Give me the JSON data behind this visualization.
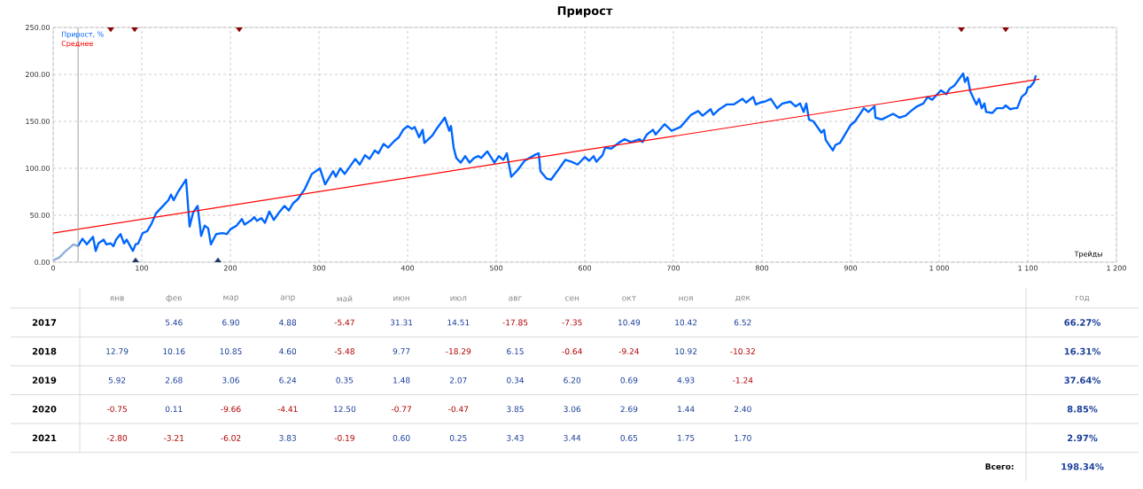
{
  "chart_data": [
    {
      "type": "line",
      "title": "Прирост",
      "xlabel": "Трейды",
      "xlim": [
        0,
        1200
      ],
      "ylim": [
        0,
        250
      ],
      "xticks": [
        0,
        100,
        200,
        300,
        400,
        500,
        600,
        700,
        800,
        900,
        {
          "value": 1000,
          "label": "1 000"
        },
        {
          "value": 1100,
          "label": "1 100"
        },
        {
          "value": 1200,
          "label": "1 200"
        }
      ],
      "yticks": [
        {
          "value": 0,
          "label": "0.00"
        },
        {
          "value": 50,
          "label": "50.00"
        },
        {
          "value": 100,
          "label": "100.00"
        },
        {
          "value": 150,
          "label": "150.00"
        },
        {
          "value": 200,
          "label": "200.00"
        },
        {
          "value": 250,
          "label": "250.00"
        }
      ],
      "grid": true,
      "legend": "top left",
      "ref_lines": [
        {
          "axis": "x",
          "value": 28,
          "color": "#a0a0a0"
        }
      ],
      "series": [
        {
          "color": "#8fb0dd",
          "x": [
            0,
            7,
            13,
            23,
            28
          ],
          "values": [
            2,
            5,
            11,
            19,
            17
          ]
        },
        {
          "name": "Прирост, %",
          "color": "#0066ff",
          "x": [
            28,
            33,
            38,
            45,
            48,
            51,
            57,
            60,
            65,
            68,
            71,
            76,
            80,
            83,
            90,
            93,
            96,
            101,
            106,
            111,
            116,
            125,
            130,
            133,
            136,
            141,
            150,
            154,
            158,
            163,
            167,
            171,
            175,
            178,
            184,
            191,
            196,
            200,
            207,
            213,
            216,
            224,
            227,
            230,
            235,
            239,
            244,
            249,
            255,
            261,
            266,
            271,
            276,
            284,
            292,
            301,
            307,
            316,
            319,
            324,
            329,
            341,
            346,
            352,
            357,
            363,
            367,
            373,
            378,
            385,
            390,
            395,
            400,
            405,
            408,
            413,
            417,
            419,
            428,
            432,
            442,
            447,
            449,
            452,
            455,
            460,
            465,
            470,
            475,
            480,
            483,
            487,
            490,
            498,
            503,
            508,
            512,
            517,
            525,
            532,
            545,
            548,
            550,
            557,
            562,
            572,
            578,
            585,
            592,
            600,
            605,
            610,
            613,
            620,
            623,
            630,
            638,
            645,
            652,
            662,
            665,
            670,
            677,
            680,
            690,
            698,
            708,
            720,
            728,
            733,
            742,
            745,
            752,
            760,
            768,
            773,
            778,
            782,
            790,
            793,
            798,
            803,
            810,
            817,
            823,
            832,
            838,
            843,
            847,
            850,
            853,
            858,
            867,
            870,
            872,
            880,
            883,
            888,
            900,
            905,
            915,
            920,
            927,
            928,
            935,
            948,
            955,
            962,
            968,
            975,
            982,
            987,
            992,
            1002,
            1008,
            1012,
            1017,
            1027,
            1029,
            1032,
            1035,
            1042,
            1045,
            1048,
            1051,
            1053,
            1060,
            1065,
            1072,
            1075,
            1080,
            1085,
            1088,
            1093,
            1098,
            1100,
            1103,
            1107,
            1109
          ],
          "values": [
            17,
            25,
            19,
            27,
            12,
            20,
            24,
            19,
            20,
            17,
            24,
            30,
            20,
            24,
            12,
            19,
            20,
            31,
            33,
            41,
            52,
            61,
            66,
            72,
            66,
            75,
            88,
            38,
            53,
            60,
            28,
            39,
            36,
            19,
            30,
            31,
            30,
            35,
            39,
            46,
            40,
            45,
            48,
            44,
            47,
            42,
            54,
            45,
            53,
            60,
            55,
            63,
            67,
            78,
            94,
            100,
            83,
            97,
            91,
            100,
            94,
            110,
            104,
            114,
            110,
            119,
            116,
            126,
            122,
            129,
            133,
            141,
            145,
            142,
            144,
            133,
            141,
            127,
            135,
            141,
            154,
            140,
            145,
            122,
            111,
            106,
            113,
            106,
            111,
            113,
            111,
            115,
            118,
            106,
            113,
            109,
            116,
            91,
            99,
            108,
            115,
            116,
            97,
            89,
            88,
            101,
            109,
            107,
            104,
            112,
            108,
            113,
            107,
            114,
            122,
            121,
            127,
            131,
            128,
            131,
            128,
            136,
            141,
            136,
            147,
            140,
            144,
            157,
            161,
            156,
            163,
            157,
            163,
            168,
            168,
            171,
            174,
            170,
            176,
            168,
            170,
            171,
            174,
            164,
            169,
            171,
            166,
            169,
            160,
            169,
            152,
            150,
            138,
            141,
            130,
            119,
            125,
            127,
            146,
            150,
            164,
            160,
            166,
            154,
            152,
            158,
            154,
            156,
            161,
            166,
            169,
            176,
            173,
            183,
            179,
            185,
            188,
            201,
            192,
            197,
            182,
            168,
            174,
            164,
            169,
            160,
            159,
            164,
            164,
            167,
            163,
            164,
            164,
            176,
            180,
            186,
            187,
            192,
            199
          ]
        },
        {
          "name": "Среднее",
          "color": "#ff0000",
          "x": [
            0,
            1113
          ],
          "values": [
            31,
            195
          ]
        },
        {
          "type": "scatter",
          "marker": "diamond",
          "color": "#8b0000",
          "x": [
            65,
            92,
            210,
            1025,
            1075
          ],
          "values": [
            250,
            250,
            250,
            250,
            250
          ]
        },
        {
          "type": "scatter",
          "marker": "diamond",
          "color": "#1f3864",
          "x": [
            93,
            186
          ],
          "values": [
            0,
            0
          ]
        }
      ]
    },
    {
      "type": "heatmap",
      "categories": [
        "янв",
        "фев",
        "мар",
        "апр",
        "май",
        "июн",
        "июл",
        "авг",
        "сен",
        "окт",
        "ноя",
        "дек"
      ],
      "y_categories": [
        "2017",
        "2018",
        "2019",
        "2020",
        "2021"
      ],
      "cells": [
        [
          null,
          5.46,
          6.9,
          4.88,
          -5.47,
          31.31,
          14.51,
          -17.85,
          -7.35,
          10.49,
          10.42,
          6.52
        ],
        [
          12.79,
          10.16,
          10.85,
          4.6,
          -5.48,
          9.77,
          -18.29,
          6.15,
          -0.64,
          -9.24,
          10.92,
          -10.32
        ],
        [
          5.92,
          2.68,
          3.06,
          6.24,
          0.35,
          1.48,
          2.07,
          0.34,
          6.2,
          0.69,
          4.93,
          -1.24
        ],
        [
          -0.75,
          0.11,
          -9.66,
          -4.41,
          12.5,
          -0.77,
          -0.47,
          3.85,
          3.06,
          2.69,
          1.44,
          2.4
        ],
        [
          -2.8,
          -3.21,
          -6.02,
          3.83,
          -0.19,
          0.6,
          0.25,
          3.43,
          3.44,
          0.65,
          1.75,
          1.7
        ]
      ],
      "cell_labels": [
        [
          null,
          "5.46",
          "6.90",
          "4.88",
          "-5.47",
          "31.31",
          "14.51",
          "-17.85",
          "-7.35",
          "10.49",
          "10.42",
          "6.52"
        ],
        [
          "12.79",
          "10.16",
          "10.85",
          "4.60",
          "-5.48",
          "9.77",
          "-18.29",
          "6.15",
          "-0.64",
          "-9.24",
          "10.92",
          "-10.32"
        ],
        [
          "5.92",
          "2.68",
          "3.06",
          "6.24",
          "0.35",
          "1.48",
          "2.07",
          "0.34",
          "6.20",
          "0.69",
          "4.93",
          "-1.24"
        ],
        [
          "-0.75",
          "0.11",
          "-9.66",
          "-4.41",
          "12.50",
          "-0.77",
          "-0.47",
          "3.85",
          "3.06",
          "2.69",
          "1.44",
          "2.40"
        ],
        [
          "-2.80",
          "-3.21",
          "-6.02",
          "3.83",
          "-0.19",
          "0.60",
          "0.25",
          "3.43",
          "3.44",
          "0.65",
          "1.75",
          "1.70"
        ]
      ]
    },
    {
      "type": "heatmap",
      "categories": [
        "год"
      ],
      "y_categories": [
        "2017",
        "2018",
        "2019",
        "2020",
        "2021"
      ],
      "tick_labels": "x",
      "cells": [
        [
          66.27
        ],
        [
          16.31
        ],
        [
          37.64
        ],
        [
          8.85
        ],
        [
          2.97
        ]
      ],
      "cell_labels": [
        [
          "66.27%"
        ],
        [
          "16.31%"
        ],
        [
          "37.64%"
        ],
        [
          "8.85%"
        ],
        [
          "2.97%"
        ]
      ],
      "annotations": [
        "Всего:",
        "198.34%"
      ]
    }
  ]
}
